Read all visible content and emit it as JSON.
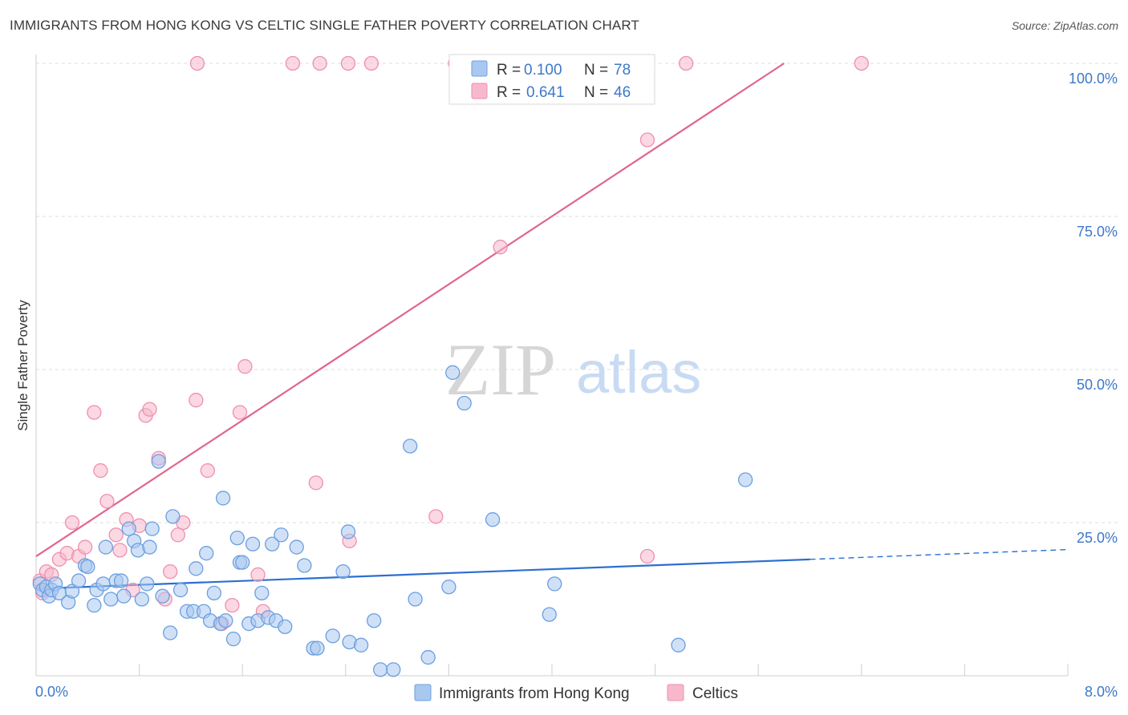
{
  "header": {
    "title": "IMMIGRANTS FROM HONG KONG VS CELTIC SINGLE FATHER POVERTY CORRELATION CHART",
    "source": "Source: ZipAtlas.com"
  },
  "watermark": {
    "zip": "ZIP",
    "atlas": "atlas"
  },
  "legend_top": [
    {
      "r_label": "R = ",
      "r_value": "0.100",
      "n_label": "N = ",
      "n_value": "78",
      "color": "#a9c8f0"
    },
    {
      "r_label": "R = ",
      "r_value": "0.641",
      "n_label": "N = ",
      "n_value": "46",
      "color": "#f7b8cb"
    }
  ],
  "legend_bottom": [
    {
      "label": "Immigrants from Hong Kong",
      "color": "#a9c8f0"
    },
    {
      "label": "Celtics",
      "color": "#f7b8cb"
    }
  ],
  "chart_data": {
    "type": "scatter",
    "ylabel": "Single Father Poverty",
    "xlim": [
      0,
      8
    ],
    "ylim": [
      0,
      100
    ],
    "x_tick_labels": [
      "0.0%",
      "8.0%"
    ],
    "y_ticks": [
      {
        "value": 25,
        "label": "25.0%"
      },
      {
        "value": 50,
        "label": "50.0%"
      },
      {
        "value": 75,
        "label": "75.0%"
      },
      {
        "value": 100,
        "label": "100.0%"
      }
    ],
    "grid": true,
    "series": [
      {
        "name": "Immigrants from Hong Kong",
        "color": "#6a9fe0",
        "fill": "#a9c8f0",
        "trend": {
          "x": [
            0,
            6.0
          ],
          "y": [
            14.2,
            19.0
          ],
          "dashed_to_x": 8.0,
          "dashed_to_y": 20.6,
          "color": "#2c6fd1"
        },
        "points": [
          [
            0.03,
            15.0
          ],
          [
            0.05,
            14.0
          ],
          [
            0.08,
            14.5
          ],
          [
            0.1,
            13.0
          ],
          [
            0.12,
            14.0
          ],
          [
            0.15,
            15.0
          ],
          [
            0.18,
            13.5
          ],
          [
            0.25,
            12.0
          ],
          [
            0.28,
            13.8
          ],
          [
            0.33,
            15.5
          ],
          [
            0.38,
            18.0
          ],
          [
            0.4,
            17.8
          ],
          [
            0.45,
            11.5
          ],
          [
            0.47,
            14.0
          ],
          [
            0.52,
            15.0
          ],
          [
            0.54,
            21.0
          ],
          [
            0.58,
            12.5
          ],
          [
            0.62,
            15.5
          ],
          [
            0.66,
            15.5
          ],
          [
            0.68,
            13.0
          ],
          [
            0.72,
            24.0
          ],
          [
            0.76,
            22.0
          ],
          [
            0.79,
            20.5
          ],
          [
            0.82,
            12.5
          ],
          [
            0.86,
            15.0
          ],
          [
            0.88,
            21.0
          ],
          [
            0.9,
            24.0
          ],
          [
            0.95,
            35.0
          ],
          [
            0.98,
            13.0
          ],
          [
            1.04,
            7.0
          ],
          [
            1.06,
            26.0
          ],
          [
            1.12,
            14.0
          ],
          [
            1.17,
            10.5
          ],
          [
            1.22,
            10.5
          ],
          [
            1.24,
            17.5
          ],
          [
            1.3,
            10.5
          ],
          [
            1.32,
            20.0
          ],
          [
            1.35,
            9.0
          ],
          [
            1.38,
            13.5
          ],
          [
            1.43,
            8.5
          ],
          [
            1.45,
            29.0
          ],
          [
            1.47,
            9.0
          ],
          [
            1.53,
            6.0
          ],
          [
            1.56,
            22.5
          ],
          [
            1.58,
            18.5
          ],
          [
            1.6,
            18.5
          ],
          [
            1.65,
            8.5
          ],
          [
            1.68,
            21.5
          ],
          [
            1.72,
            9.0
          ],
          [
            1.75,
            13.5
          ],
          [
            1.8,
            9.5
          ],
          [
            1.83,
            21.5
          ],
          [
            1.86,
            9.0
          ],
          [
            1.9,
            23.0
          ],
          [
            1.93,
            8.0
          ],
          [
            2.02,
            21.0
          ],
          [
            2.08,
            18.0
          ],
          [
            2.15,
            4.5
          ],
          [
            2.18,
            4.5
          ],
          [
            2.3,
            6.5
          ],
          [
            2.38,
            17.0
          ],
          [
            2.42,
            23.5
          ],
          [
            2.43,
            5.5
          ],
          [
            2.52,
            5.0
          ],
          [
            2.62,
            9.0
          ],
          [
            2.67,
            1.0
          ],
          [
            2.77,
            1.0
          ],
          [
            2.9,
            37.5
          ],
          [
            2.94,
            12.5
          ],
          [
            3.04,
            3.0
          ],
          [
            3.2,
            14.5
          ],
          [
            3.23,
            49.5
          ],
          [
            3.32,
            44.5
          ],
          [
            3.54,
            25.5
          ],
          [
            3.98,
            10.0
          ],
          [
            4.02,
            15.0
          ],
          [
            4.98,
            5.0
          ],
          [
            5.5,
            32.0
          ]
        ]
      },
      {
        "name": "Celtics",
        "color": "#ef8fb0",
        "fill": "#f7b8cb",
        "trend": {
          "x": [
            0,
            5.8
          ],
          "y": [
            19.5,
            100.0
          ],
          "color": "#e0668f"
        },
        "points": [
          [
            0.03,
            15.5
          ],
          [
            0.05,
            13.5
          ],
          [
            0.08,
            17.0
          ],
          [
            0.12,
            16.5
          ],
          [
            0.18,
            19.0
          ],
          [
            0.24,
            20.0
          ],
          [
            0.28,
            25.0
          ],
          [
            0.33,
            19.5
          ],
          [
            0.38,
            21.0
          ],
          [
            0.45,
            43.0
          ],
          [
            0.5,
            33.5
          ],
          [
            0.55,
            28.5
          ],
          [
            0.62,
            23.0
          ],
          [
            0.65,
            20.5
          ],
          [
            0.7,
            25.5
          ],
          [
            0.75,
            14.0
          ],
          [
            0.8,
            24.5
          ],
          [
            0.85,
            42.5
          ],
          [
            0.88,
            43.5
          ],
          [
            0.95,
            35.5
          ],
          [
            1.0,
            12.5
          ],
          [
            1.04,
            17.0
          ],
          [
            1.1,
            23.0
          ],
          [
            1.14,
            25.0
          ],
          [
            1.24,
            45.0
          ],
          [
            1.33,
            33.5
          ],
          [
            1.44,
            8.5
          ],
          [
            1.52,
            11.5
          ],
          [
            1.58,
            43.0
          ],
          [
            1.62,
            50.5
          ],
          [
            1.72,
            16.5
          ],
          [
            1.76,
            10.5
          ],
          [
            2.17,
            31.5
          ],
          [
            2.43,
            22.0
          ],
          [
            3.1,
            26.0
          ],
          [
            3.6,
            70.0
          ],
          [
            4.74,
            19.5
          ],
          [
            4.74,
            87.5
          ],
          [
            1.25,
            100.0
          ],
          [
            1.99,
            100.0
          ],
          [
            2.2,
            100.0
          ],
          [
            2.42,
            100.0
          ],
          [
            2.6,
            100.0
          ],
          [
            3.25,
            100.0
          ],
          [
            5.04,
            100.0
          ],
          [
            6.4,
            100.0
          ]
        ]
      }
    ]
  }
}
